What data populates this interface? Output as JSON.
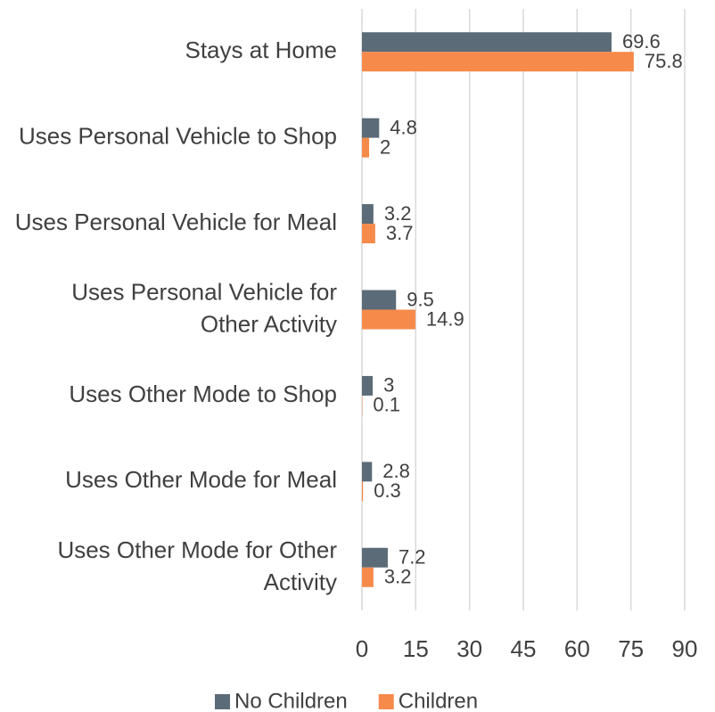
{
  "chart_data": {
    "type": "barh",
    "categories": [
      "Stays at Home",
      "Uses Personal Vehicle to Shop",
      "Uses Personal Vehicle for Meal",
      "Uses Personal Vehicle for Other Activity",
      "Uses Other Mode to Shop",
      "Uses Other Mode for Meal",
      "Uses Other Mode for Other Activity"
    ],
    "series": [
      {
        "name": "No Children",
        "color": "#5b6b77",
        "values": [
          69.6,
          4.8,
          3.2,
          9.5,
          3,
          2.8,
          7.2
        ]
      },
      {
        "name": "Children",
        "color": "#f58a4b",
        "values": [
          75.8,
          2,
          3.7,
          14.9,
          0.1,
          0.3,
          3.2
        ]
      }
    ],
    "xlim": [
      0,
      90
    ],
    "xticks": [
      0,
      15,
      30,
      45,
      60,
      75,
      90
    ],
    "grid": true,
    "legend": "bottom"
  }
}
